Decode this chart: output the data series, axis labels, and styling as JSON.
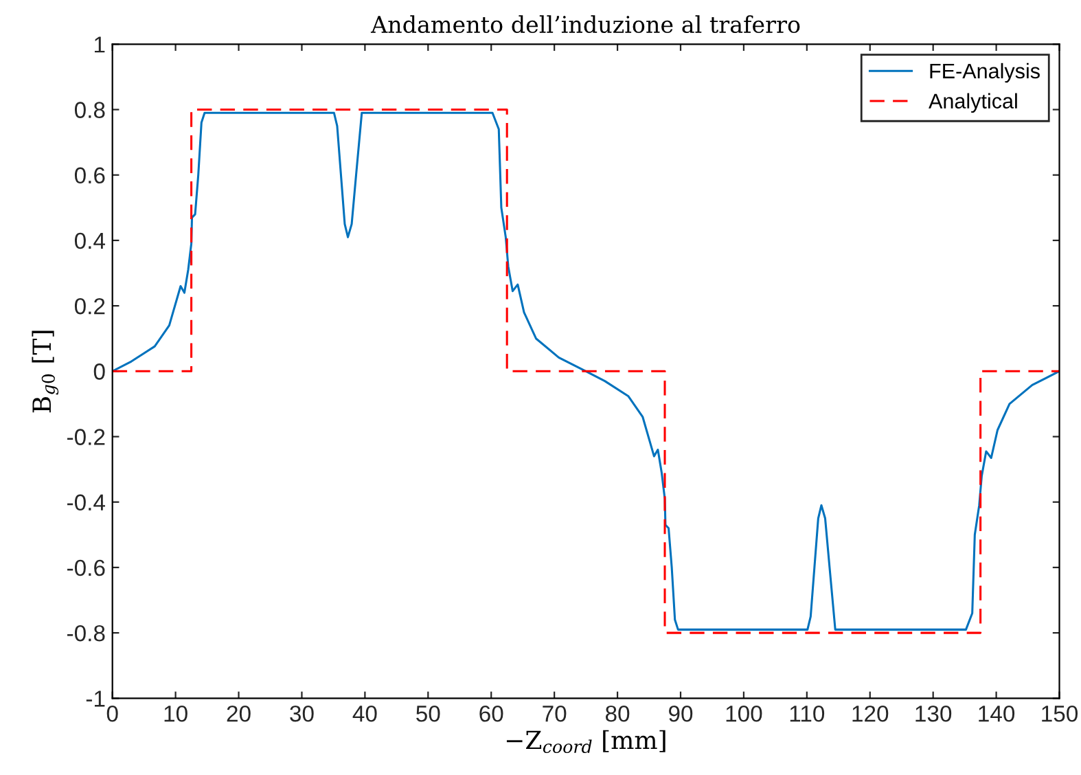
{
  "chart_data": {
    "type": "line",
    "title": "Andamento dell’induzione al traferro",
    "xlabel": "−Z$_{coord}$ [mm]",
    "ylabel": "B$_{g0}$ [T]",
    "xlim": [
      0,
      150
    ],
    "xticks": [
      0,
      10,
      20,
      30,
      40,
      50,
      60,
      70,
      80,
      90,
      100,
      110,
      120,
      130,
      140,
      150
    ],
    "ylim": [
      -1,
      1
    ],
    "yticks": [
      -1,
      -0.8,
      -0.6,
      -0.4,
      -0.2,
      0,
      0.2,
      0.4,
      0.6,
      0.8,
      1
    ],
    "grid": false,
    "legend": "top right",
    "series": [
      {
        "name": "FE-Analysis",
        "color": "#0072bd",
        "line_style": "solid",
        "x": [
          0,
          3,
          6.7,
          9,
          10.8,
          11.4,
          12,
          12.5,
          12.6,
          13.1,
          13.6,
          14.1,
          14.6,
          35.1,
          35.6,
          36.2,
          36.8,
          37.3,
          37.9,
          38.6,
          39.5,
          60.2,
          61.2,
          61.6,
          62.3,
          62.7,
          63.4,
          64.2,
          65.2,
          67.1,
          70.7,
          75,
          78,
          81.7,
          84,
          85.8,
          86.4,
          87,
          87.5,
          87.6,
          88.1,
          88.6,
          89.1,
          89.6,
          110.1,
          110.6,
          111.2,
          111.8,
          112.3,
          112.9,
          113.6,
          114.5,
          135.2,
          136.2,
          136.6,
          137.3,
          137.7,
          138.4,
          139.2,
          140.2,
          142.1,
          145.7,
          150
        ],
        "values": [
          0,
          0.03,
          0.076,
          0.14,
          0.26,
          0.24,
          0.31,
          0.39,
          0.47,
          0.48,
          0.6,
          0.76,
          0.79,
          0.79,
          0.75,
          0.6,
          0.45,
          0.41,
          0.45,
          0.6,
          0.79,
          0.79,
          0.74,
          0.5,
          0.41,
          0.32,
          0.245,
          0.265,
          0.18,
          0.1,
          0.042,
          0,
          -0.03,
          -0.076,
          -0.14,
          -0.26,
          -0.24,
          -0.31,
          -0.39,
          -0.47,
          -0.48,
          -0.6,
          -0.76,
          -0.79,
          -0.79,
          -0.75,
          -0.6,
          -0.45,
          -0.41,
          -0.45,
          -0.6,
          -0.79,
          -0.79,
          -0.74,
          -0.5,
          -0.41,
          -0.32,
          -0.245,
          -0.265,
          -0.18,
          -0.1,
          -0.042,
          0
        ]
      },
      {
        "name": "Analytical",
        "color": "#ff0000",
        "line_style": "dashed",
        "x": [
          0,
          12.5,
          12.5,
          62.5,
          62.5,
          87.5,
          87.5,
          137.5,
          137.5,
          150
        ],
        "values": [
          0,
          0,
          0.8,
          0.8,
          0,
          0,
          -0.8,
          -0.8,
          0,
          0
        ]
      }
    ]
  }
}
